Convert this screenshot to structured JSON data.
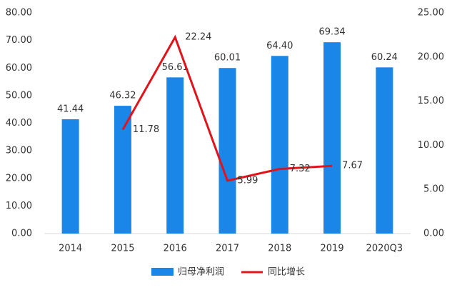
{
  "chart_data": {
    "type": "bar-line",
    "categories": [
      "2014",
      "2015",
      "2016",
      "2017",
      "2018",
      "2019",
      "2020Q3"
    ],
    "series": [
      {
        "name": "归母净利润",
        "color": "#1a86e8",
        "type": "bar",
        "values": [
          41.44,
          46.32,
          56.61,
          60.01,
          64.4,
          69.34,
          60.24
        ],
        "value_labels": [
          "41.44",
          "46.32",
          "56.61",
          "60.01",
          "64.40",
          "69.34",
          "60.24"
        ]
      },
      {
        "name": "同比增长",
        "color": "#e0151c",
        "type": "line",
        "axis": "y2",
        "values": [
          null,
          11.78,
          22.24,
          5.99,
          7.32,
          7.67,
          null
        ]
      }
    ],
    "ylim": [
      0,
      80
    ],
    "yticks": [
      {
        "value": 0,
        "label": "0.00"
      },
      {
        "value": 10,
        "label": "10.00"
      },
      {
        "value": 20,
        "label": "20.00"
      },
      {
        "value": 30,
        "label": "30.00"
      },
      {
        "value": 40,
        "label": "40.00"
      },
      {
        "value": 50,
        "label": "50.00"
      },
      {
        "value": 60,
        "label": "60.00"
      },
      {
        "value": 70,
        "label": "70.00"
      },
      {
        "value": 80,
        "label": "80.00"
      }
    ],
    "y2lim": [
      0,
      25
    ],
    "y2ticks": [
      {
        "value": 0,
        "label": "0.00"
      },
      {
        "value": 5,
        "label": "5.00"
      },
      {
        "value": 10,
        "label": "10.00"
      },
      {
        "value": 15,
        "label": "15.00"
      },
      {
        "value": 20,
        "label": "20.00"
      },
      {
        "value": 25,
        "label": "25.00"
      }
    ],
    "legend": "bottom"
  }
}
